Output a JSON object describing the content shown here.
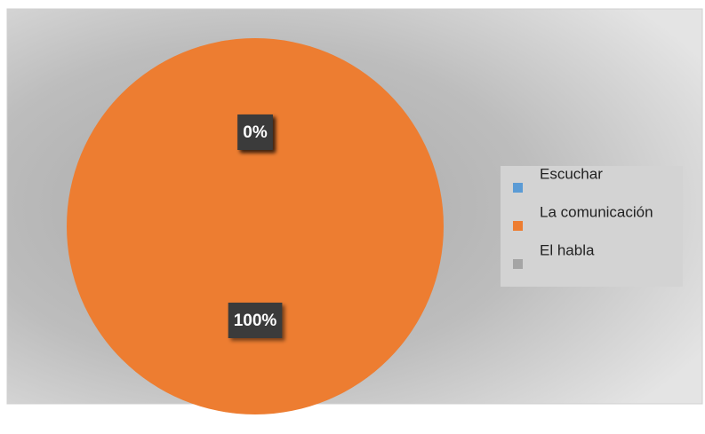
{
  "chart_data": {
    "type": "pie",
    "categories": [
      "Escuchar",
      "La comunicación",
      "El habla"
    ],
    "values": [
      0,
      100,
      0
    ],
    "value_labels": [
      "0%",
      "100%",
      "0%"
    ],
    "colors": [
      "#5b9bd5",
      "#ed7d31",
      "#a5a5a5"
    ],
    "legend": "right"
  }
}
